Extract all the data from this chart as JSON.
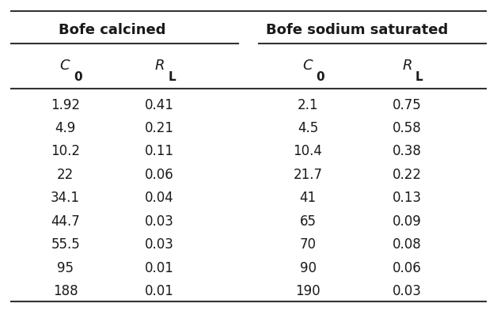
{
  "group1_header": "Bofe calcined",
  "group2_header": "Bofe sodium saturated",
  "col1_header": "C_0",
  "col2_header": "R_L",
  "col3_header": "C_0",
  "col4_header": "R_L",
  "bofe_calcined_C0": [
    "1.92",
    "4.9",
    "10.2",
    "22",
    "34.1",
    "44.7",
    "55.5",
    "95",
    "188"
  ],
  "bofe_calcined_RL": [
    "0.41",
    "0.21",
    "0.11",
    "0.06",
    "0.04",
    "0.03",
    "0.03",
    "0.01",
    "0.01"
  ],
  "bofe_sodium_C0": [
    "2.1",
    "4.5",
    "10.4",
    "21.7",
    "41",
    "65",
    "70",
    "90",
    "190"
  ],
  "bofe_sodium_RL": [
    "0.75",
    "0.58",
    "0.38",
    "0.22",
    "0.13",
    "0.09",
    "0.08",
    "0.06",
    "0.03"
  ],
  "bg_color": "#ffffff",
  "text_color": "#1a1a1a",
  "line_color": "#333333",
  "header_fontsize": 13,
  "subheader_fontsize": 13,
  "data_fontsize": 12
}
